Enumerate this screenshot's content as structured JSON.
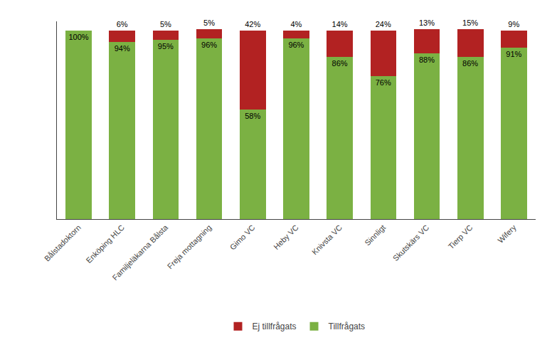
{
  "chart_data": {
    "type": "bar",
    "stacked": true,
    "data_labels": true,
    "grid": false,
    "tick_labels": "x",
    "legend": "bottom",
    "categories": [
      "Bålstadoktorn",
      "Enköping HLC",
      "Familjeläkarna Bålsta",
      "Freja mottagning",
      "Gimo VC",
      "Heby VC",
      "Knivsta VC",
      "Sinnligt",
      "Skutskärs VC",
      "Tierp VC",
      "Wifery"
    ],
    "ylim": [
      0,
      105
    ],
    "series": [
      {
        "name": "Tillfrågats",
        "color": "#7bb143",
        "values": [
          100,
          94,
          95,
          96,
          58,
          96,
          86,
          76,
          88,
          86,
          91
        ],
        "value_labels": [
          "100%",
          "94%",
          "95%",
          "96%",
          "58%",
          "96%",
          "86%",
          "76%",
          "88%",
          "86%",
          "91%"
        ]
      },
      {
        "name": "Ej tillfrågats",
        "color": "#b22222",
        "values": [
          0,
          6,
          5,
          5,
          42,
          4,
          14,
          24,
          13,
          15,
          9
        ],
        "value_labels": [
          null,
          "6%",
          "5%",
          "5%",
          "42%",
          "4%",
          "14%",
          "24%",
          "13%",
          "15%",
          "9%"
        ]
      }
    ]
  }
}
